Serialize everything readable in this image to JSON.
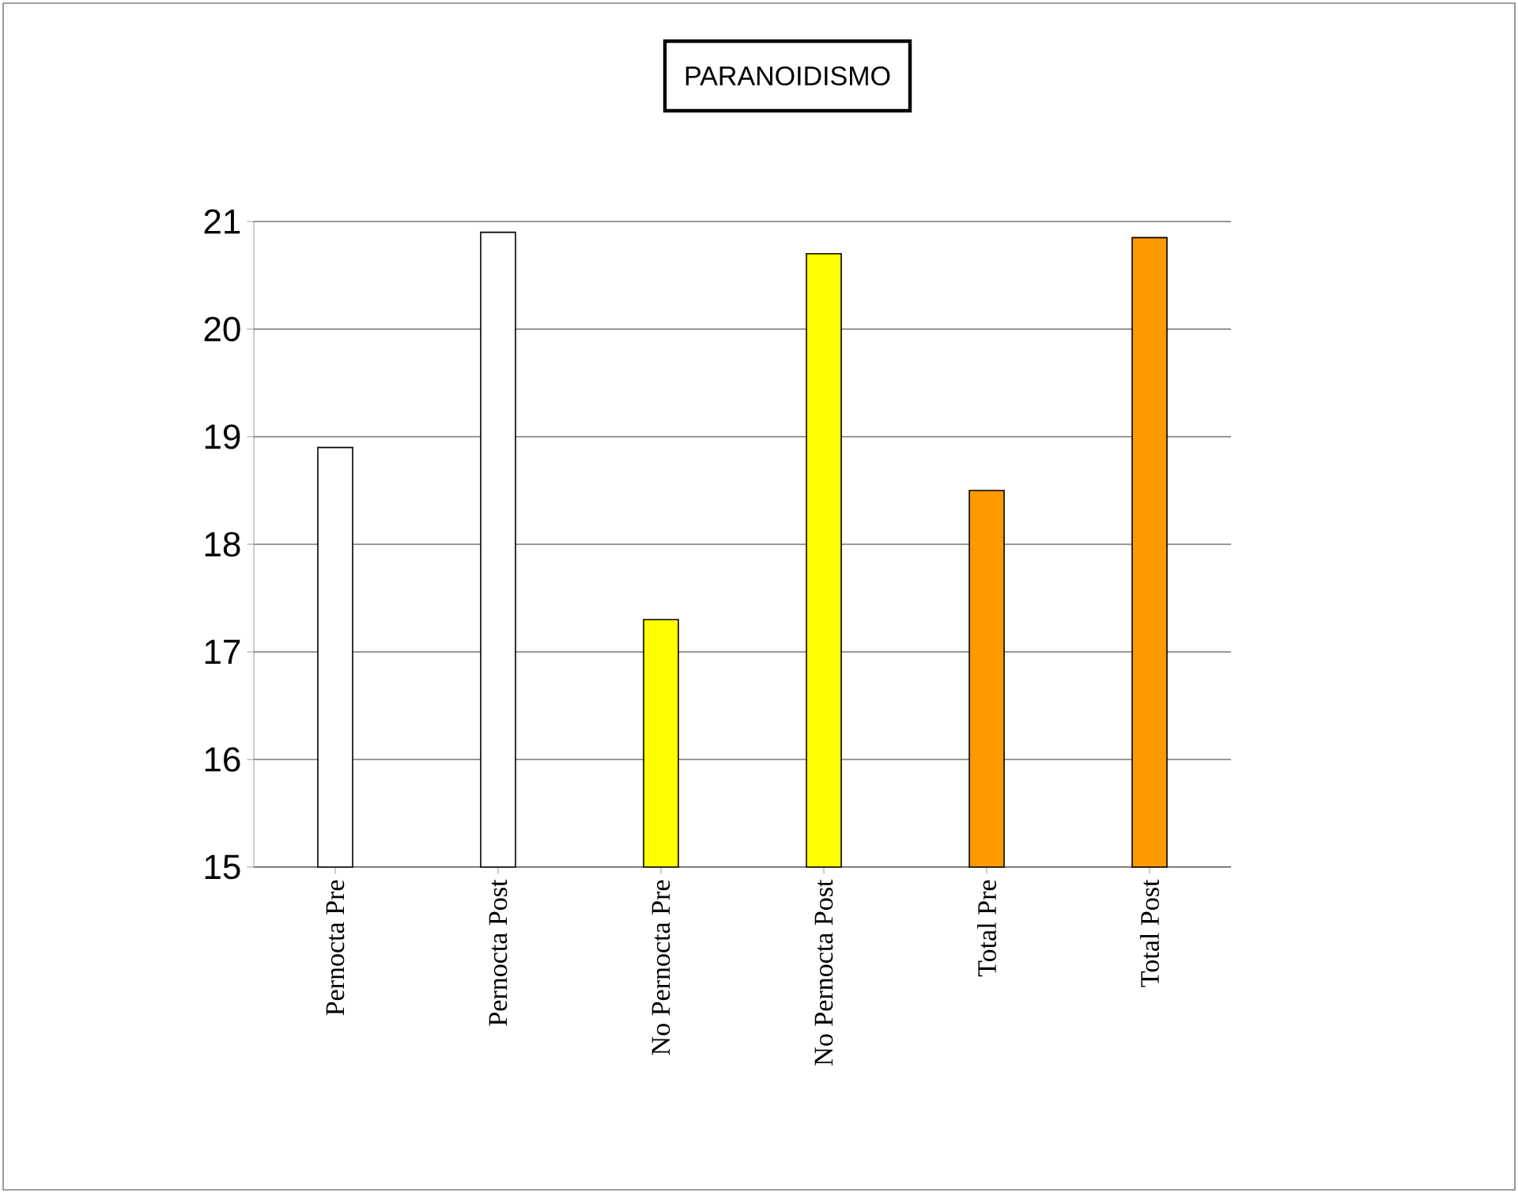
{
  "chart_data": {
    "type": "bar",
    "title": "PARANOIDISMO",
    "categories": [
      "Pernocta Pre",
      "Pernocta Post",
      "No Pernocta Pre",
      "No Pernocta Post",
      "Total Pre",
      "Total Post"
    ],
    "values": [
      18.9,
      20.9,
      17.3,
      20.7,
      18.5,
      20.85
    ],
    "colors": [
      "#ffffff",
      "#ffffff",
      "#ffff00",
      "#ffff00",
      "#ff9900",
      "#ff9900"
    ],
    "ylim": [
      15,
      21
    ],
    "yticks": [
      15,
      16,
      17,
      18,
      19,
      20,
      21
    ],
    "grid": "y"
  }
}
